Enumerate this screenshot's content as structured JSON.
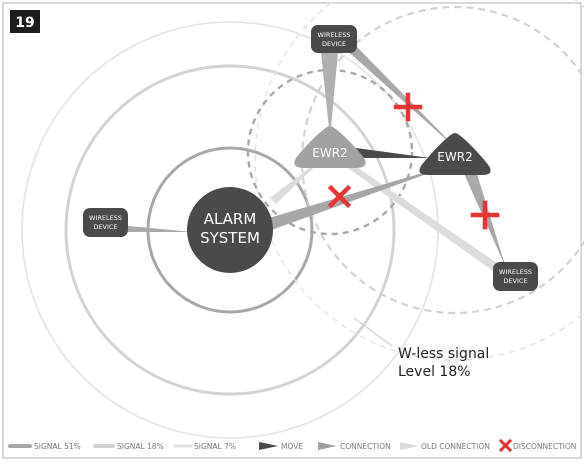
{
  "figure": {
    "number": "19"
  },
  "nodes": {
    "alarm_system": {
      "line1": "ALARM",
      "line2": "SYSTEM"
    },
    "ewr2_old": {
      "label": "EWR2"
    },
    "ewr2_new": {
      "label": "EWR2"
    },
    "device_top": {
      "line1": "WIRELESS",
      "line2": "DEVICE"
    },
    "device_left": {
      "line1": "WIRELESS",
      "line2": "DEVICE"
    },
    "device_right": {
      "line1": "WIRELESS",
      "line2": "DEVICE"
    }
  },
  "annotation": {
    "line1": "W-less signal",
    "line2": "Level 18%"
  },
  "legend": {
    "signal_51": "SIGNAL 51%",
    "signal_18": "SIGNAL 18%",
    "signal_7": "SIGNAL 7%",
    "move": "MOVE",
    "connection": "CONNECTION",
    "old_connection": "OLD CONNECTION",
    "disconnection": "DISCONNECTION"
  },
  "colors": {
    "frame": "#bdbdbd",
    "dark_node": "#4a4a4a",
    "old_node": "#a2a2a2",
    "signal_strong": "#a6a6a6",
    "signal_medium": "#d2d2d2",
    "signal_weak": "#e3e3e3",
    "connection": "#9a9a9a",
    "old_connection": "#dcdcdc",
    "disconnect": "#e63333",
    "badge": "#1c1c1c"
  }
}
